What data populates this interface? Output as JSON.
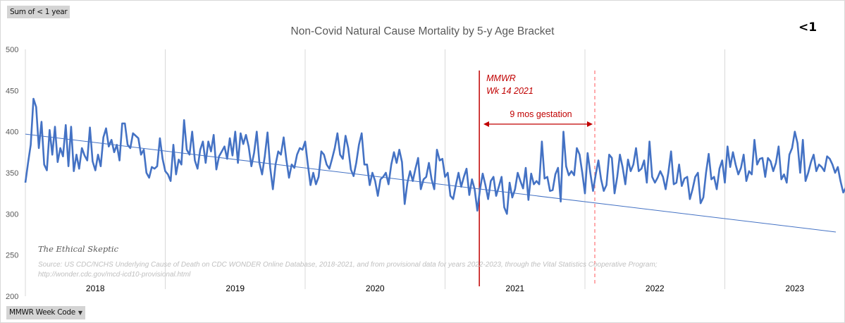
{
  "filters": {
    "value_field": "Sum of < 1 year",
    "axis_field": "MMWR Week Code",
    "axis_field_icon": "dropdown-arrow-icon"
  },
  "badge": "<1",
  "chart_data": {
    "type": "line",
    "title": "Non-Covid Natural Cause Mortality by 5-y Age Bracket",
    "xlabel": "",
    "ylabel": "",
    "ylim": [
      200,
      500
    ],
    "yticks": [
      200,
      250,
      300,
      350,
      400,
      450,
      500
    ],
    "ytick_labels": [
      "200",
      "250",
      "300",
      "350",
      "400",
      "450",
      "500"
    ],
    "categories": [
      "2018",
      "2019",
      "2020",
      "2021",
      "2022",
      "2023"
    ],
    "weeks_per_year": 52,
    "grid": "vertical year separators",
    "legend": "none",
    "series": [
      {
        "name": "< 1 year weekly deaths",
        "color": "#4472c4",
        "values": [
          338,
          362,
          384,
          440,
          430,
          380,
          412,
          360,
          353,
          402,
          372,
          406,
          363,
          380,
          370,
          408,
          358,
          406,
          352,
          372,
          355,
          380,
          371,
          365,
          405,
          364,
          353,
          372,
          358,
          393,
          404,
          382,
          390,
          375,
          384,
          365,
          410,
          410,
          384,
          380,
          398,
          395,
          392,
          372,
          378,
          350,
          344,
          357,
          355,
          358,
          392,
          367,
          352,
          348,
          340,
          384,
          348,
          366,
          360,
          414,
          378,
          372,
          400,
          365,
          355,
          378,
          388,
          362,
          388,
          376,
          396,
          354,
          370,
          376,
          382,
          367,
          392,
          371,
          400,
          362,
          398,
          385,
          396,
          382,
          358,
          374,
          400,
          362,
          348,
          370,
          399,
          356,
          330,
          360,
          376,
          372,
          393,
          366,
          344,
          360,
          356,
          372,
          380,
          378,
          388,
          360,
          335,
          350,
          336,
          345,
          376,
          372,
          360,
          355,
          367,
          380,
          398,
          372,
          367,
          395,
          380,
          354,
          346,
          362,
          384,
          398,
          360,
          360,
          335,
          350,
          340,
          322,
          342,
          345,
          350,
          336,
          360,
          375,
          362,
          378,
          363,
          312,
          338,
          352,
          340,
          355,
          368,
          330,
          342,
          345,
          362,
          342,
          330,
          378,
          365,
          367,
          345,
          350,
          322,
          318,
          335,
          350,
          333,
          345,
          355,
          323,
          342,
          330,
          304,
          330,
          349,
          335,
          318,
          340,
          345,
          322,
          333,
          345,
          308,
          300,
          338,
          320,
          330,
          350,
          340,
          331,
          356,
          317,
          349,
          336,
          340,
          336,
          388,
          343,
          345,
          328,
          329,
          348,
          356,
          315,
          400,
          358,
          347,
          352,
          347,
          380,
          372,
          350,
          325,
          374,
          350,
          328,
          348,
          365,
          342,
          328,
          335,
          372,
          368,
          325,
          345,
          372,
          357,
          336,
          366,
          352,
          360,
          380,
          352,
          355,
          365,
          338,
          388,
          345,
          338,
          344,
          352,
          345,
          330,
          350,
          376,
          336,
          338,
          360,
          334,
          343,
          345,
          318,
          330,
          345,
          350,
          313,
          320,
          350,
          373,
          342,
          345,
          330,
          355,
          365,
          338,
          382,
          357,
          375,
          360,
          348,
          356,
          372,
          340,
          352,
          348,
          390,
          360,
          367,
          368,
          345,
          368,
          364,
          352,
          362,
          382,
          342,
          348,
          338,
          372,
          380,
          400,
          386,
          350,
          390,
          340,
          350,
          363,
          372,
          352,
          360,
          357,
          352,
          370,
          367,
          360,
          350,
          357,
          340,
          326,
          332,
          335,
          330,
          330,
          326,
          340,
          347,
          336,
          366,
          352,
          352,
          312,
          368,
          352,
          340,
          318,
          366,
          368,
          340,
          330,
          355,
          320,
          318,
          302,
          330,
          310,
          316,
          334,
          305,
          332
        ]
      },
      {
        "name": "Linear trend",
        "color": "#4472c4",
        "start_value": 397,
        "end_value": 278
      }
    ],
    "annotations": [
      {
        "type": "vertical-line",
        "style": "solid",
        "color": "#c00000",
        "label": "MMWR\nWk 14 2021",
        "label_lines": [
          "MMWR",
          "Wk 14 2021"
        ],
        "at_year": 2021,
        "at_week": 14
      },
      {
        "type": "vertical-line",
        "style": "dashed",
        "color": "#ff7c80",
        "at_year": 2022,
        "at_week": 1
      },
      {
        "type": "double-arrow",
        "color": "#c00000",
        "label": "9 mos gestation"
      }
    ],
    "watermark": "The Ethical Skeptic",
    "source_lines": [
      "Source:  US CDC/NCHS Underlying Cause of Death on CDC WONDER Online Database, 2018-2021, and from provisional data for years 2022-2023, through the Vital Statistics Cooperative Program;",
      "http://wonder.cdc.gov/mcd-icd10-provisional.html"
    ]
  }
}
